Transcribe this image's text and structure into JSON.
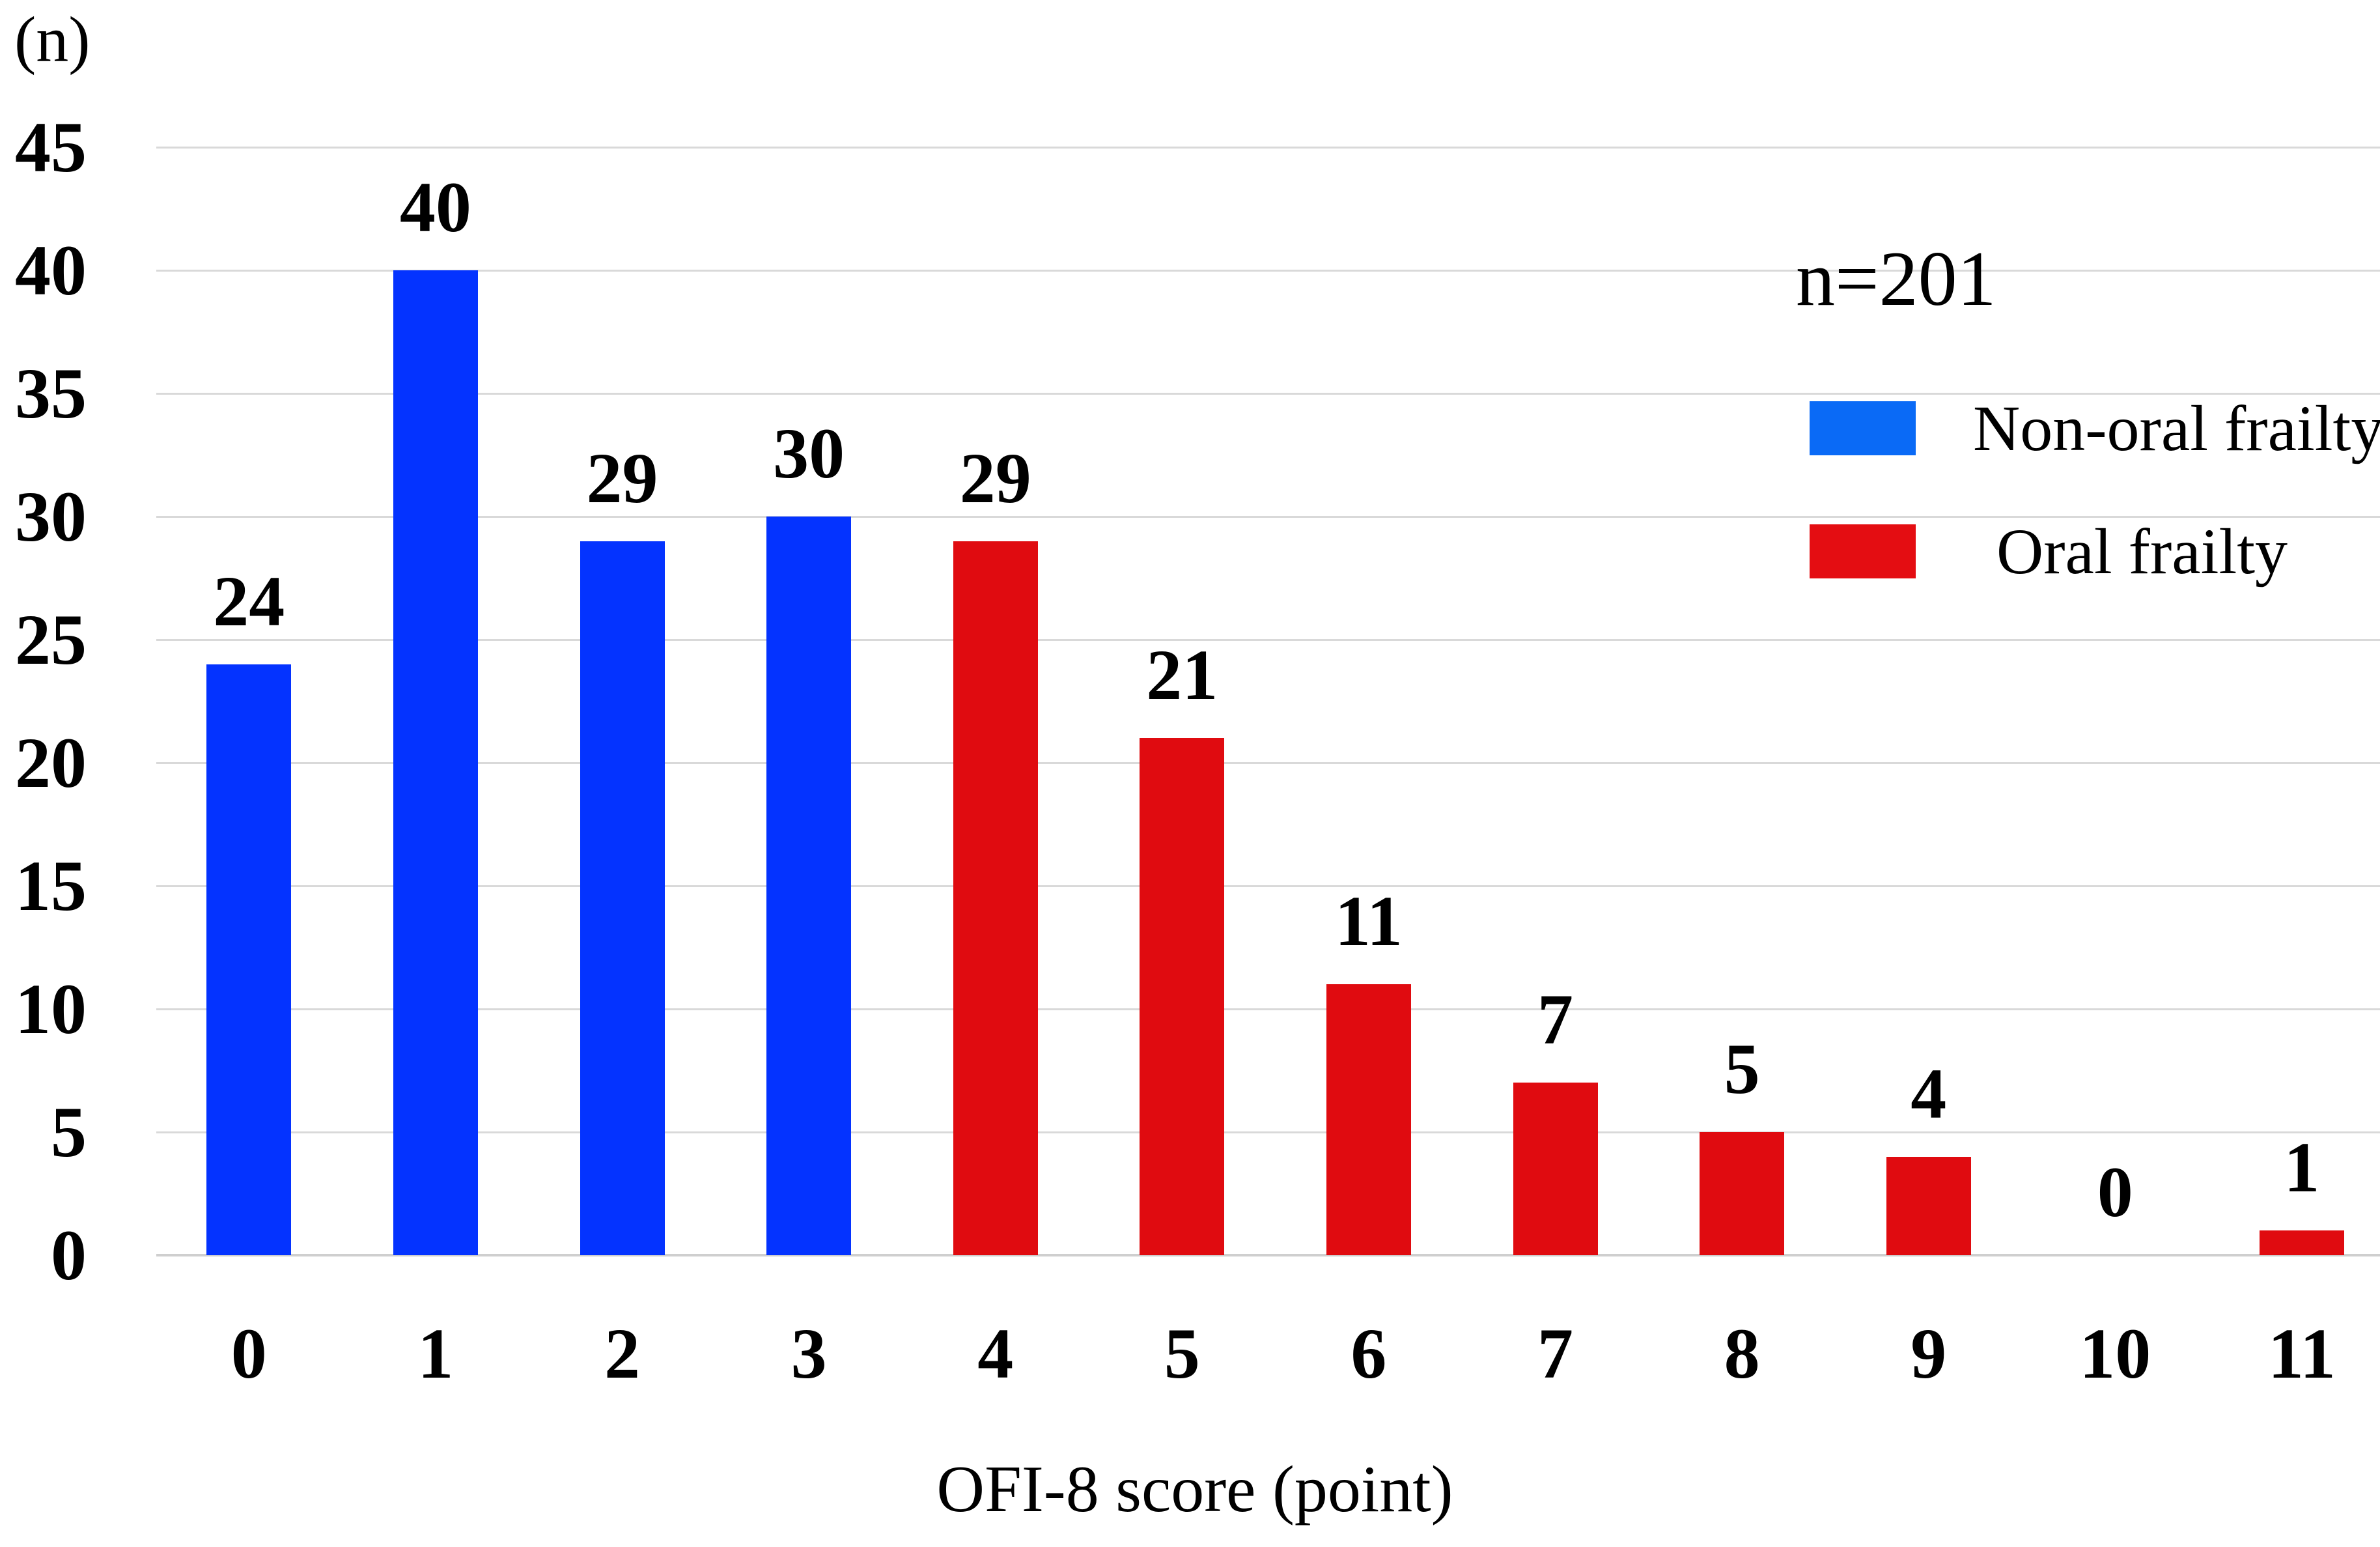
{
  "chart_data": {
    "type": "bar",
    "title": "",
    "xlabel": "OFI-8 score (point)",
    "ylabel": "(n)",
    "ylim": [
      0,
      45
    ],
    "ytick_step": 5,
    "grid": true,
    "legend_position": "upper right",
    "annotation": "n=201",
    "categories": [
      "0",
      "1",
      "2",
      "3",
      "4",
      "5",
      "6",
      "7",
      "8",
      "9",
      "10",
      "11"
    ],
    "values": [
      24,
      40,
      29,
      30,
      29,
      21,
      11,
      7,
      5,
      4,
      0,
      1
    ],
    "groups": [
      "non_oral",
      "non_oral",
      "non_oral",
      "non_oral",
      "oral",
      "oral",
      "oral",
      "oral",
      "oral",
      "oral",
      "oral",
      "oral"
    ],
    "series_colors": {
      "non_oral": "#0433ff",
      "oral": "#e00b10"
    },
    "legend": [
      {
        "label": "Non-oral frailty",
        "group": "non_oral",
        "swatch_color": "#0a6af6"
      },
      {
        "label": "Oral frailty",
        "group": "oral",
        "swatch_color": "#e40d12"
      }
    ],
    "colors": {
      "gridline": "#d9d9d9",
      "axis_line": "#cfcfcf",
      "text": "#000000"
    }
  }
}
